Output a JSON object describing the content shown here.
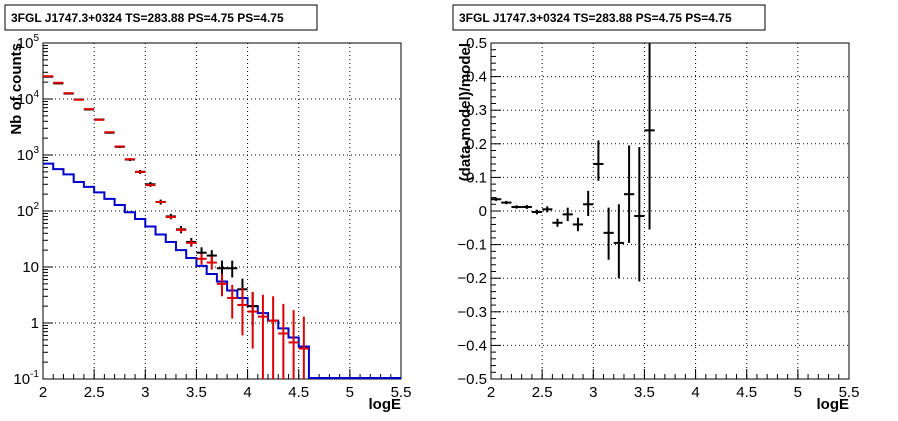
{
  "chart_data": [
    {
      "type": "line",
      "title": "3FGL J1747.3+0324 TS=283.88 PS=4.75 PS=4.75",
      "xlabel": "logE",
      "ylabel": "Nb of counts",
      "xlim": [
        2,
        5.5
      ],
      "ylim": [
        0.1,
        100000
      ],
      "log_y": true,
      "grid": true,
      "x_ticks": [
        "2",
        "2.5",
        "3",
        "3.5",
        "4",
        "4.5",
        "5",
        "5.5"
      ],
      "y_ticks": [
        "10^-1",
        "1",
        "10",
        "10^2",
        "10^3",
        "10^4",
        "10^5"
      ],
      "series": [
        {
          "kind": "step",
          "color": "#0000cc",
          "x_edges": [
            2.0,
            2.1,
            2.2,
            2.3,
            2.4,
            2.5,
            2.6,
            2.7,
            2.8,
            2.9,
            3.0,
            3.1,
            3.2,
            3.3,
            3.4,
            3.5,
            3.6,
            3.7,
            3.8,
            3.9,
            4.0,
            4.1,
            4.2,
            4.3,
            4.4,
            4.5,
            4.6,
            4.7,
            4.8,
            4.9,
            5.0,
            5.1,
            5.2,
            5.3,
            5.4,
            5.5
          ],
          "values": [
            700,
            560,
            450,
            330,
            270,
            215,
            165,
            128,
            95,
            72,
            53,
            38,
            28,
            20,
            14.5,
            10.5,
            7.5,
            5.5,
            3.8,
            2.8,
            2.0,
            1.5,
            1.1,
            0.8,
            0.55,
            0.38,
            0.1,
            0.1,
            0.1,
            0.1,
            0.1,
            0.1,
            0.1,
            0.1,
            0.1
          ]
        },
        {
          "kind": "errorbar",
          "color": "#000000",
          "points": [
            {
              "x": 2.05,
              "y": 25000,
              "lo": 24500,
              "hi": 25500
            },
            {
              "x": 2.15,
              "y": 19000,
              "lo": 18600,
              "hi": 19400
            },
            {
              "x": 2.25,
              "y": 12500,
              "lo": 12200,
              "hi": 12800
            },
            {
              "x": 2.35,
              "y": 9800,
              "lo": 9600,
              "hi": 10000
            },
            {
              "x": 2.45,
              "y": 6500,
              "lo": 6300,
              "hi": 6700
            },
            {
              "x": 2.55,
              "y": 4300,
              "lo": 4150,
              "hi": 4450
            },
            {
              "x": 2.65,
              "y": 2500,
              "lo": 2400,
              "hi": 2600
            },
            {
              "x": 2.75,
              "y": 1400,
              "lo": 1330,
              "hi": 1470
            },
            {
              "x": 2.85,
              "y": 830,
              "lo": 780,
              "hi": 880
            },
            {
              "x": 2.95,
              "y": 500,
              "lo": 460,
              "hi": 540
            },
            {
              "x": 3.05,
              "y": 300,
              "lo": 270,
              "hi": 330
            },
            {
              "x": 3.15,
              "y": 145,
              "lo": 130,
              "hi": 160
            },
            {
              "x": 3.25,
              "y": 80,
              "lo": 71,
              "hi": 89
            },
            {
              "x": 3.35,
              "y": 47,
              "lo": 40,
              "hi": 54
            },
            {
              "x": 3.45,
              "y": 28,
              "lo": 23,
              "hi": 33
            },
            {
              "x": 3.55,
              "y": 18,
              "lo": 14,
              "hi": 22.5
            },
            {
              "x": 3.65,
              "y": 16,
              "lo": 12,
              "hi": 20
            },
            {
              "x": 3.75,
              "y": 9.5,
              "lo": 6.5,
              "hi": 13
            },
            {
              "x": 3.85,
              "y": 9.5,
              "lo": 6.5,
              "hi": 13
            },
            {
              "x": 3.95,
              "y": 4.0,
              "lo": 2.3,
              "hi": 6.2
            },
            {
              "x": 4.05,
              "y": 2.0,
              "lo": 0.9,
              "hi": 3.5
            }
          ]
        },
        {
          "kind": "errorbar",
          "color": "#dd0000",
          "points": [
            {
              "x": 2.05,
              "y": 25500,
              "lo": 25200,
              "hi": 25800
            },
            {
              "x": 2.15,
              "y": 19500,
              "lo": 19200,
              "hi": 19800
            },
            {
              "x": 2.25,
              "y": 12700,
              "lo": 12500,
              "hi": 12900
            },
            {
              "x": 2.35,
              "y": 9700,
              "lo": 9500,
              "hi": 9900
            },
            {
              "x": 2.45,
              "y": 6600,
              "lo": 6450,
              "hi": 6750
            },
            {
              "x": 2.55,
              "y": 4250,
              "lo": 4150,
              "hi": 4350
            },
            {
              "x": 2.65,
              "y": 2550,
              "lo": 2480,
              "hi": 2620
            },
            {
              "x": 2.75,
              "y": 1420,
              "lo": 1380,
              "hi": 1460
            },
            {
              "x": 2.85,
              "y": 840,
              "lo": 810,
              "hi": 870
            },
            {
              "x": 2.95,
              "y": 500,
              "lo": 480,
              "hi": 520
            },
            {
              "x": 3.05,
              "y": 290,
              "lo": 275,
              "hi": 305
            },
            {
              "x": 3.15,
              "y": 145,
              "lo": 138,
              "hi": 152
            },
            {
              "x": 3.25,
              "y": 78,
              "lo": 73,
              "hi": 83
            },
            {
              "x": 3.35,
              "y": 46,
              "lo": 42,
              "hi": 50
            },
            {
              "x": 3.45,
              "y": 27,
              "lo": 24,
              "hi": 30
            },
            {
              "x": 3.55,
              "y": 14,
              "lo": 11,
              "hi": 17
            },
            {
              "x": 3.65,
              "y": 12,
              "lo": 9,
              "hi": 15.5
            },
            {
              "x": 3.75,
              "y": 5.0,
              "lo": 3.0,
              "hi": 7.5
            },
            {
              "x": 3.85,
              "y": 2.8,
              "lo": 1.2,
              "hi": 4.8
            },
            {
              "x": 3.95,
              "y": 2.1,
              "lo": 0.6,
              "hi": 4.2
            },
            {
              "x": 4.05,
              "y": 1.6,
              "lo": 0.35,
              "hi": 3.6
            },
            {
              "x": 4.15,
              "y": 1.3,
              "lo": 0.1,
              "hi": 3.2
            },
            {
              "x": 4.25,
              "y": 1.1,
              "lo": 0.1,
              "hi": 3.0
            },
            {
              "x": 4.35,
              "y": 0.65,
              "lo": 0.1,
              "hi": 2.2
            },
            {
              "x": 4.45,
              "y": 0.45,
              "lo": 0.1,
              "hi": 1.7
            },
            {
              "x": 4.55,
              "y": 0.35,
              "lo": 0.1,
              "hi": 1.3
            }
          ]
        }
      ]
    },
    {
      "type": "scatter",
      "title": "3FGL J1747.3+0324 TS=283.88 PS=4.75 PS=4.75",
      "xlabel": "logE",
      "ylabel": "(data-model)/model",
      "xlim": [
        2,
        5.5
      ],
      "ylim": [
        -0.5,
        0.5
      ],
      "grid": true,
      "x_ticks": [
        "2",
        "2.5",
        "3",
        "3.5",
        "4",
        "4.5",
        "5",
        "5.5"
      ],
      "y_ticks": [
        "−0.5",
        "−0.4",
        "−0.3",
        "−0.2",
        "−0.1",
        "0",
        "0.1",
        "0.2",
        "0.3",
        "0.4",
        "0.5"
      ],
      "series": [
        {
          "kind": "errorbar",
          "color": "#000000",
          "points": [
            {
              "x": 2.05,
              "y": 0.035,
              "lo": 0.03,
              "hi": 0.04
            },
            {
              "x": 2.15,
              "y": 0.025,
              "lo": 0.02,
              "hi": 0.03
            },
            {
              "x": 2.25,
              "y": 0.012,
              "lo": 0.007,
              "hi": 0.017
            },
            {
              "x": 2.35,
              "y": 0.012,
              "lo": 0.006,
              "hi": 0.018
            },
            {
              "x": 2.45,
              "y": -0.003,
              "lo": -0.01,
              "hi": 0.004
            },
            {
              "x": 2.55,
              "y": 0.005,
              "lo": -0.004,
              "hi": 0.014
            },
            {
              "x": 2.65,
              "y": -0.035,
              "lo": -0.047,
              "hi": -0.023
            },
            {
              "x": 2.75,
              "y": -0.01,
              "lo": -0.03,
              "hi": 0.01
            },
            {
              "x": 2.85,
              "y": -0.04,
              "lo": -0.06,
              "hi": -0.02
            },
            {
              "x": 2.95,
              "y": 0.02,
              "lo": -0.015,
              "hi": 0.06
            },
            {
              "x": 3.05,
              "y": 0.14,
              "lo": 0.09,
              "hi": 0.21
            },
            {
              "x": 3.15,
              "y": -0.065,
              "lo": -0.145,
              "hi": 0.01
            },
            {
              "x": 3.25,
              "y": -0.095,
              "lo": -0.2,
              "hi": 0.02
            },
            {
              "x": 3.35,
              "y": 0.05,
              "lo": -0.095,
              "hi": 0.195
            },
            {
              "x": 3.45,
              "y": -0.015,
              "lo": -0.21,
              "hi": 0.19
            },
            {
              "x": 3.55,
              "y": 0.24,
              "lo": -0.055,
              "hi": 0.5
            }
          ]
        }
      ]
    }
  ]
}
